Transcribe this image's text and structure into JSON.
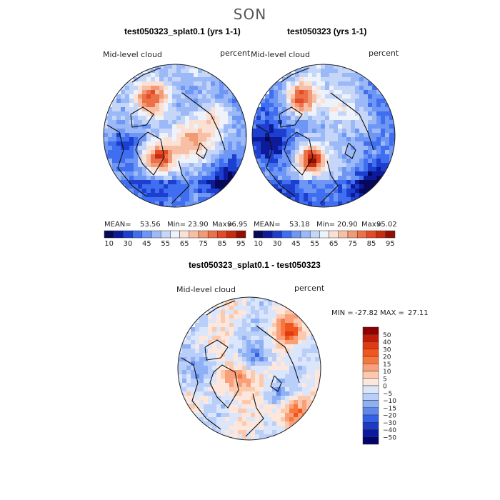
{
  "figure": {
    "season": "SON",
    "colors": {
      "map_ocean_hint": "#3c6fe0"
    }
  },
  "chart_data": [
    {
      "type": "heatmap",
      "title": "test050323_splat0.1 (yrs 1-1)",
      "left_label": "Mid-level cloud",
      "right_label": "percent",
      "projection": "polar-stereographic (north)",
      "stats": {
        "mean_label": "MEAN=",
        "mean": "53.56",
        "min_label": "Min=",
        "min": "23.90",
        "max_label": "Max=",
        "max": "96.95"
      },
      "colorbar": {
        "levels": [
          10,
          30,
          45,
          55,
          65,
          75,
          85,
          95
        ],
        "colors": [
          "#08085a",
          "#0d1a9a",
          "#1c3fd0",
          "#3f6ef0",
          "#6e96f5",
          "#9bb8f7",
          "#c6d6f9",
          "#eef2fb",
          "#fbe0d4",
          "#f7c0a6",
          "#f29a74",
          "#ec7048",
          "#e44a26",
          "#c82c10",
          "#901004"
        ]
      }
    },
    {
      "type": "heatmap",
      "title": "test050323 (yrs 1-1)",
      "left_label": "Mid-level cloud",
      "right_label": "percent",
      "projection": "polar-stereographic (north)",
      "stats": {
        "mean_label": "MEAN=",
        "mean": "53.18",
        "min_label": "Min=",
        "min": "20.90",
        "max_label": "Max=",
        "max": "95.02"
      },
      "colorbar": {
        "levels": [
          10,
          30,
          45,
          55,
          65,
          75,
          85,
          95
        ],
        "colors": [
          "#08085a",
          "#0d1a9a",
          "#1c3fd0",
          "#3f6ef0",
          "#6e96f5",
          "#9bb8f7",
          "#c6d6f9",
          "#eef2fb",
          "#fbe0d4",
          "#f7c0a6",
          "#f29a74",
          "#ec7048",
          "#e44a26",
          "#c82c10",
          "#901004"
        ]
      }
    },
    {
      "type": "heatmap",
      "title": "test050323_splat0.1 - test050323",
      "left_label": "Mid-level cloud",
      "right_label": "percent",
      "projection": "polar-stereographic (north)",
      "stats": {
        "min_label": "MIN =",
        "min": "-27.82",
        "max_label": "MAX =",
        "max": "27.11"
      },
      "colorbar": {
        "levels": [
          "50",
          "40",
          "30",
          "20",
          "15",
          "10",
          "5",
          "0",
          "−5",
          "−10",
          "−15",
          "−20",
          "−30",
          "−40",
          "−50"
        ],
        "colors": [
          "#8f0000",
          "#c41a0a",
          "#e03a12",
          "#f0561e",
          "#f7783e",
          "#f9a07a",
          "#fcc9ac",
          "#fde7dc",
          "#dbe6fb",
          "#b9cef8",
          "#8eb0f4",
          "#5f88ee",
          "#3460e6",
          "#1a3bc9",
          "#0a1aa0",
          "#03046a"
        ]
      }
    }
  ]
}
